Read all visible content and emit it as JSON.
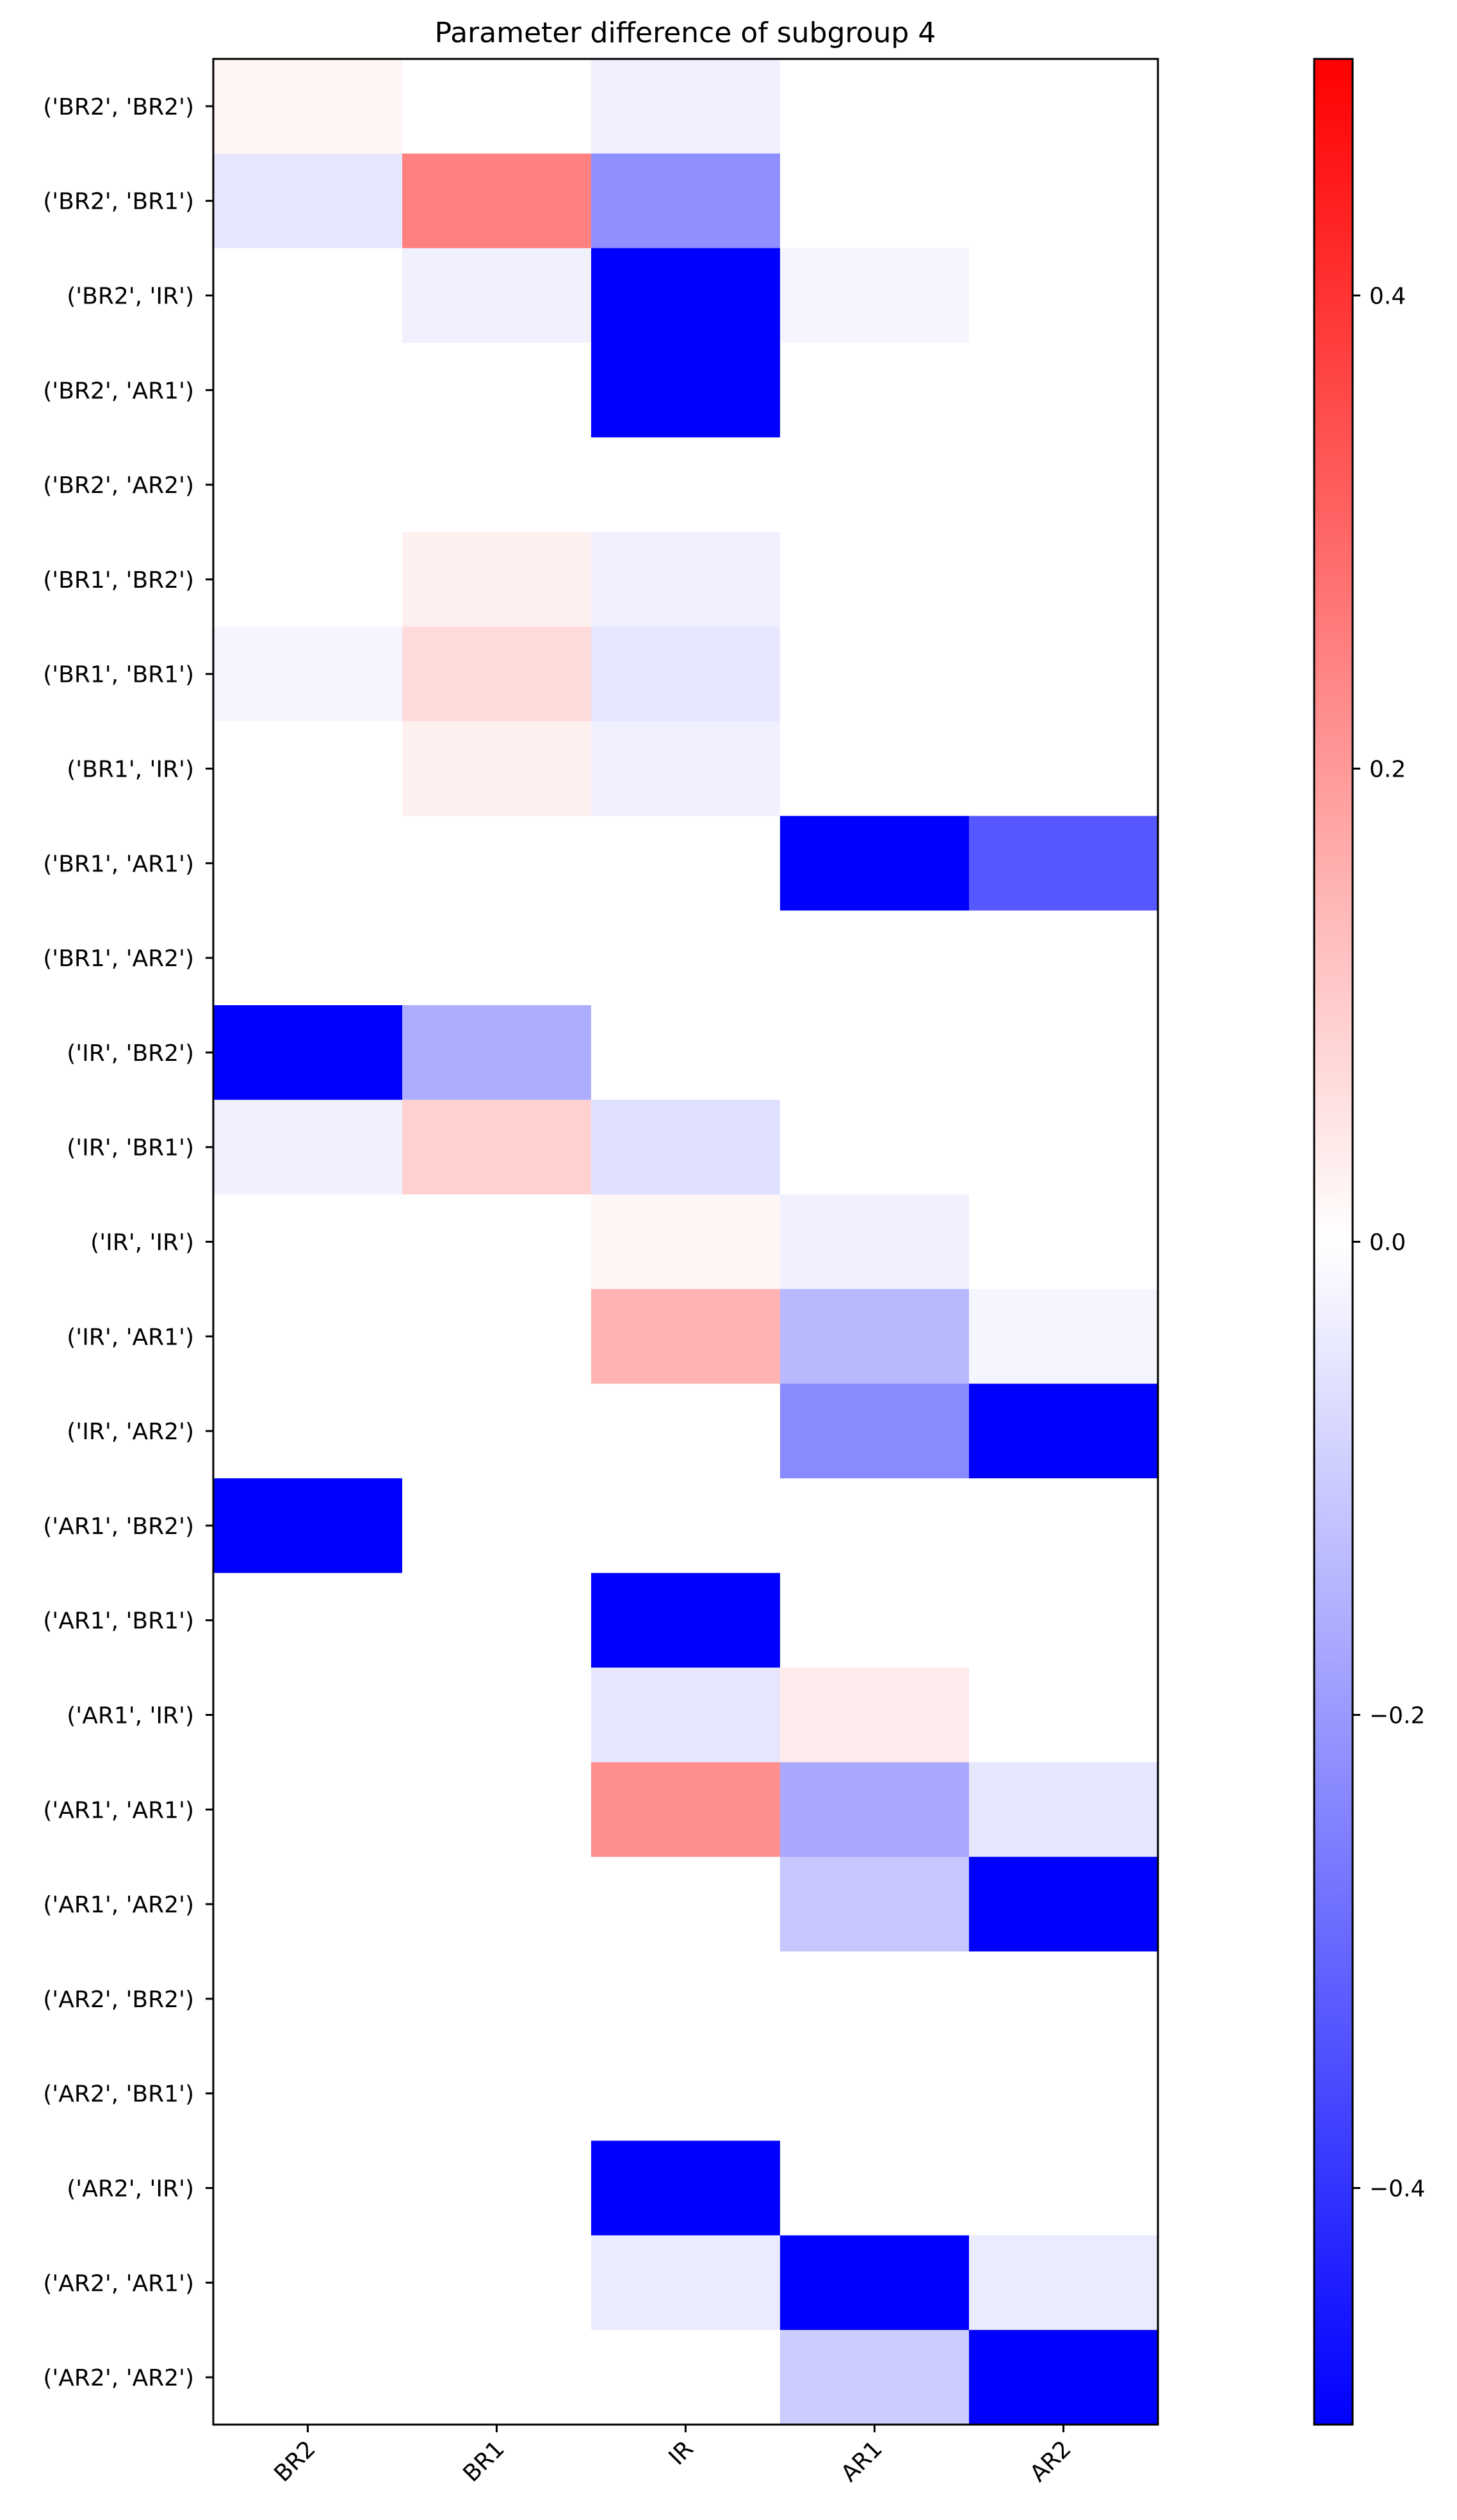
{
  "chart_data": {
    "type": "heatmap",
    "title": "Parameter difference of subgroup 4",
    "xlabel": "",
    "ylabel": "",
    "x_categories": [
      "BR2",
      "BR1",
      "IR",
      "AR1",
      "AR2"
    ],
    "y_categories": [
      "('BR2', 'BR2')",
      "('BR2', 'BR1')",
      "('BR2', 'IR')",
      "('BR2', 'AR1')",
      "('BR2', 'AR2')",
      "('BR1', 'BR2')",
      "('BR1', 'BR1')",
      "('BR1', 'IR')",
      "('BR1', 'AR1')",
      "('BR1', 'AR2')",
      "('IR', 'BR2')",
      "('IR', 'BR1')",
      "('IR', 'IR')",
      "('IR', 'AR1')",
      "('IR', 'AR2')",
      "('AR1', 'BR2')",
      "('AR1', 'BR1')",
      "('AR1', 'IR')",
      "('AR1', 'AR1')",
      "('AR1', 'AR2')",
      "('AR2', 'BR2')",
      "('AR2', 'BR1')",
      "('AR2', 'IR')",
      "('AR2', 'AR1')",
      "('AR2', 'AR2')"
    ],
    "values": [
      [
        0.02,
        0.0,
        -0.03,
        0.0,
        0.0
      ],
      [
        -0.05,
        0.25,
        -0.22,
        0.0,
        0.0
      ],
      [
        0.0,
        -0.03,
        -0.5,
        -0.02,
        0.0
      ],
      [
        0.0,
        0.0,
        -0.5,
        0.0,
        0.0
      ],
      [
        0.0,
        0.0,
        0.0,
        0.0,
        0.0
      ],
      [
        0.0,
        0.03,
        -0.03,
        0.0,
        0.0
      ],
      [
        -0.02,
        0.07,
        -0.05,
        0.0,
        0.0
      ],
      [
        0.0,
        0.03,
        -0.03,
        0.0,
        0.0
      ],
      [
        0.0,
        0.0,
        0.0,
        -0.5,
        -0.33
      ],
      [
        0.0,
        0.0,
        0.0,
        0.0,
        0.0
      ],
      [
        -0.5,
        -0.16,
        0.0,
        0.0,
        0.0
      ],
      [
        -0.03,
        0.09,
        -0.06,
        0.0,
        0.0
      ],
      [
        0.0,
        0.0,
        0.02,
        -0.03,
        0.0
      ],
      [
        0.0,
        0.0,
        0.15,
        -0.14,
        -0.02
      ],
      [
        0.0,
        0.0,
        0.0,
        -0.23,
        -0.5
      ],
      [
        -0.5,
        0.0,
        0.0,
        0.0,
        0.0
      ],
      [
        0.0,
        0.0,
        -0.5,
        0.0,
        0.0
      ],
      [
        0.0,
        0.0,
        -0.05,
        0.04,
        0.0
      ],
      [
        0.0,
        0.0,
        0.22,
        -0.17,
        -0.05
      ],
      [
        0.0,
        0.0,
        0.0,
        -0.11,
        -0.5
      ],
      [
        0.0,
        0.0,
        0.0,
        0.0,
        0.0
      ],
      [
        0.0,
        0.0,
        0.0,
        0.0,
        0.0
      ],
      [
        0.0,
        0.0,
        -0.5,
        0.0,
        0.0
      ],
      [
        0.0,
        0.0,
        -0.04,
        -0.5,
        -0.04
      ],
      [
        0.0,
        0.0,
        0.0,
        -0.1,
        -0.5
      ]
    ],
    "colorbar": {
      "colormap": "bwr",
      "vmin": -0.5,
      "vmax": 0.5,
      "ticks": [
        -0.4,
        -0.2,
        0.0,
        0.2,
        0.4
      ],
      "tick_labels": [
        "−0.4",
        "−0.2",
        "0.0",
        "0.2",
        "0.4"
      ]
    },
    "grid": false,
    "legend": "none"
  }
}
